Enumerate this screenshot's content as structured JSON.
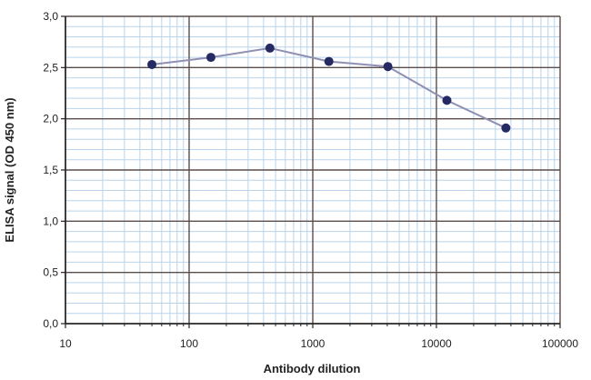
{
  "chart_data": {
    "type": "scatter",
    "xlabel": "Antibody dilution",
    "ylabel": "ELISA signal (OD 450 nm)",
    "x_scale": "log",
    "xlim": [
      10,
      100000
    ],
    "ylim": [
      0,
      3.0
    ],
    "x_ticks": [
      "10",
      "100",
      "1000",
      "10000",
      "100000"
    ],
    "y_ticks": [
      "0,0",
      "0,5",
      "1,0",
      "1,5",
      "2,0",
      "2,5",
      "3,0"
    ],
    "grid": true,
    "legend": "none",
    "series": [
      {
        "x": [
          50,
          150,
          450,
          1350,
          4050,
          12150,
          36450
        ],
        "y": [
          2.53,
          2.6,
          2.69,
          2.56,
          2.51,
          2.18,
          1.91
        ],
        "line_color": "#8f90b4",
        "marker_color": "#252a63"
      }
    ],
    "colors": {
      "major_grid": "#5a4e4a",
      "minor_grid": "#b9d3ea",
      "axis": "#222222"
    }
  }
}
